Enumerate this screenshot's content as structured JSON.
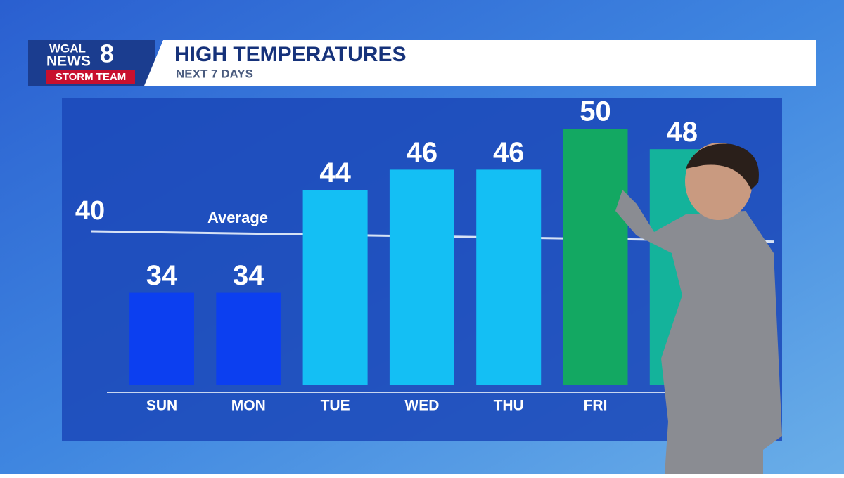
{
  "logo": {
    "line1": "WGAL",
    "line2": "NEWS",
    "number": "8",
    "line3": "STORM TEAM"
  },
  "chart_data": {
    "type": "bar",
    "title": "HIGH TEMPERATURES",
    "subtitle": "NEXT 7 DAYS",
    "categories": [
      "SUN",
      "MON",
      "TUE",
      "WED",
      "THU",
      "FRI",
      null
    ],
    "values": [
      34,
      34,
      44,
      46,
      46,
      50,
      48
    ],
    "colors": [
      "#0c3ff0",
      "#0c3ff0",
      "#14bff4",
      "#14bff4",
      "#14bff4",
      "#13a862",
      "#14b39b"
    ],
    "ylim": [
      25,
      50
    ],
    "average": {
      "label": "Average",
      "start": 40,
      "end": 39
    }
  }
}
